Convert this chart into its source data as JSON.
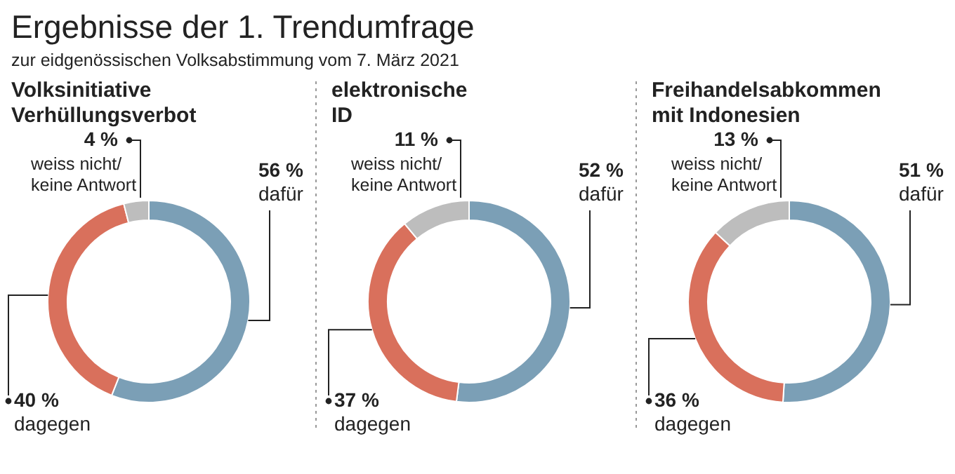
{
  "chart_data": [
    {
      "type": "other",
      "title": "Ergebnisse der 1. Trendumfrage",
      "subtitle": "zur eidgenössischen Volksabstimmung vom 7. März 2021"
    },
    {
      "type": "donut",
      "title": "Volksinitiative Verhüllungsverbot",
      "categories": [
        "dafür",
        "dagegen",
        "weiss nicht/\nkeine Antwort"
      ],
      "values": [
        56,
        40,
        4
      ],
      "value_labels": [
        "56 %",
        "40 %",
        "4 %"
      ],
      "colors": [
        "#7b9fb6",
        "#d9705c",
        "#bdbdbd"
      ]
    },
    {
      "type": "donut",
      "title": "elektronische ID",
      "categories": [
        "dafür",
        "dagegen",
        "weiss nicht/\nkeine Antwort"
      ],
      "values": [
        52,
        37,
        11
      ],
      "value_labels": [
        "52 %",
        "37 %",
        "11 %"
      ],
      "colors": [
        "#7b9fb6",
        "#d9705c",
        "#bdbdbd"
      ]
    },
    {
      "type": "donut",
      "title": "Freihandelsabkommen mit Indonesien",
      "categories": [
        "dafür",
        "dagegen",
        "weiss nicht/\nkeine Antwort"
      ],
      "values": [
        51,
        36,
        13
      ],
      "value_labels": [
        "51 %",
        "36 %",
        "13 %"
      ],
      "colors": [
        "#7b9fb6",
        "#d9705c",
        "#bdbdbd"
      ]
    }
  ]
}
